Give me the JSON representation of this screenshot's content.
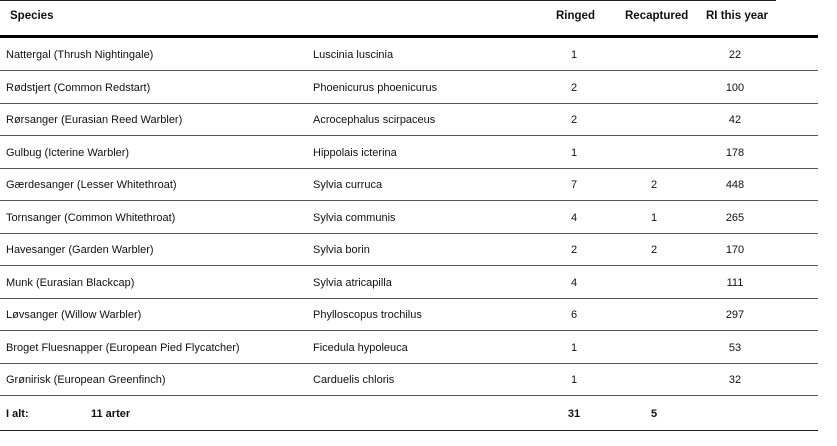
{
  "header": {
    "species": "Species",
    "ringed": "Ringed",
    "recaptured": "Recaptured",
    "ri_this_year": "RI this year"
  },
  "rows": [
    {
      "species": "Nattergal   (Thrush Nightingale)",
      "latin": "Luscinia luscinia",
      "ringed": "1",
      "recaptured": "",
      "ri": "22"
    },
    {
      "species": "Rødstjert   (Common Redstart)",
      "latin": "Phoenicurus phoenicurus",
      "ringed": "2",
      "recaptured": "",
      "ri": "100"
    },
    {
      "species": "Rørsanger   (Eurasian Reed Warbler)",
      "latin": "Acrocephalus scirpaceus",
      "ringed": "2",
      "recaptured": "",
      "ri": "42"
    },
    {
      "species": "Gulbug   (Icterine Warbler)",
      "latin": "Hippolais icterina",
      "ringed": "1",
      "recaptured": "",
      "ri": "178"
    },
    {
      "species": "Gærdesanger   (Lesser Whitethroat)",
      "latin": "Sylvia curruca",
      "ringed": "7",
      "recaptured": "2",
      "ri": "448"
    },
    {
      "species": "Tornsanger   (Common Whitethroat)",
      "latin": "Sylvia communis",
      "ringed": "4",
      "recaptured": "1",
      "ri": "265"
    },
    {
      "species": "Havesanger   (Garden Warbler)",
      "latin": "Sylvia borin",
      "ringed": "2",
      "recaptured": "2",
      "ri": "170"
    },
    {
      "species": "Munk   (Eurasian Blackcap)",
      "latin": "Sylvia atricapilla",
      "ringed": "4",
      "recaptured": "",
      "ri": "111"
    },
    {
      "species": "Løvsanger   (Willow Warbler)",
      "latin": "Phylloscopus trochilus",
      "ringed": "6",
      "recaptured": "",
      "ri": "297"
    },
    {
      "species": "Broget Fluesnapper   (European Pied Flycatcher)",
      "latin": "Ficedula hypoleuca",
      "ringed": "1",
      "recaptured": "",
      "ri": "53"
    },
    {
      "species": "Grønirisk   (European Greenfinch)",
      "latin": "Carduelis chloris",
      "ringed": "1",
      "recaptured": "",
      "ri": "32"
    }
  ],
  "total": {
    "label": "I alt:",
    "count": "11 arter",
    "ringed": "31",
    "recaptured": "5"
  }
}
